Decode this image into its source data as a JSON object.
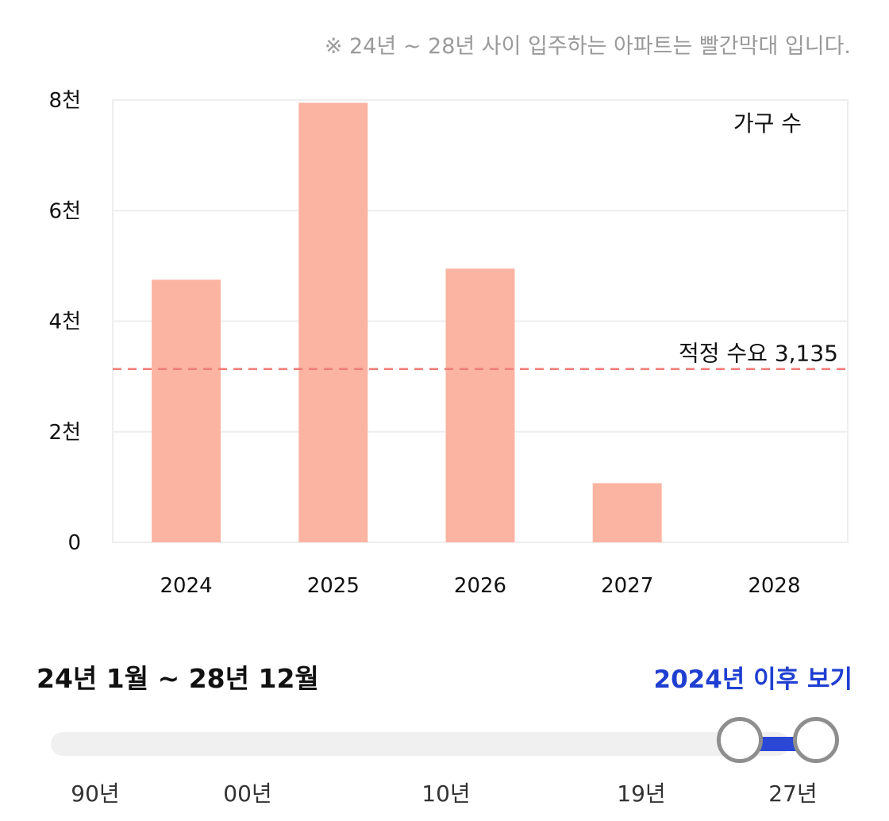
{
  "note": "※ 24년 ~ 28년 사이 입주하는 아파트는 빨간막대 입니다.",
  "chart_data": {
    "type": "bar",
    "categories": [
      "2024",
      "2025",
      "2026",
      "2027",
      "2028"
    ],
    "values": [
      4750,
      7950,
      4950,
      1070,
      0
    ],
    "ylim": [
      0,
      8000
    ],
    "yticks": [
      0,
      2000,
      4000,
      6000,
      8000
    ],
    "ytick_labels": [
      "0",
      "2천",
      "4천",
      "6천",
      "8천"
    ],
    "legend": "가구 수",
    "legend_placement": "top-right",
    "grid": true,
    "bar_color": "#fbb4a2",
    "reference_line": {
      "value": 3135,
      "label": "적정 수요 3,135",
      "color": "#f07c76"
    }
  },
  "filter": {
    "range_label": "24년 1월 ~ 28년 12월",
    "view_link": "2024년 이후 보기",
    "accent_color": "#1f3fd1",
    "slider": {
      "min": 1990,
      "max": 2028,
      "start": 2024,
      "end": 2028,
      "tick_labels": [
        "90년",
        "00년",
        "10년",
        "19년",
        "27년"
      ]
    }
  }
}
